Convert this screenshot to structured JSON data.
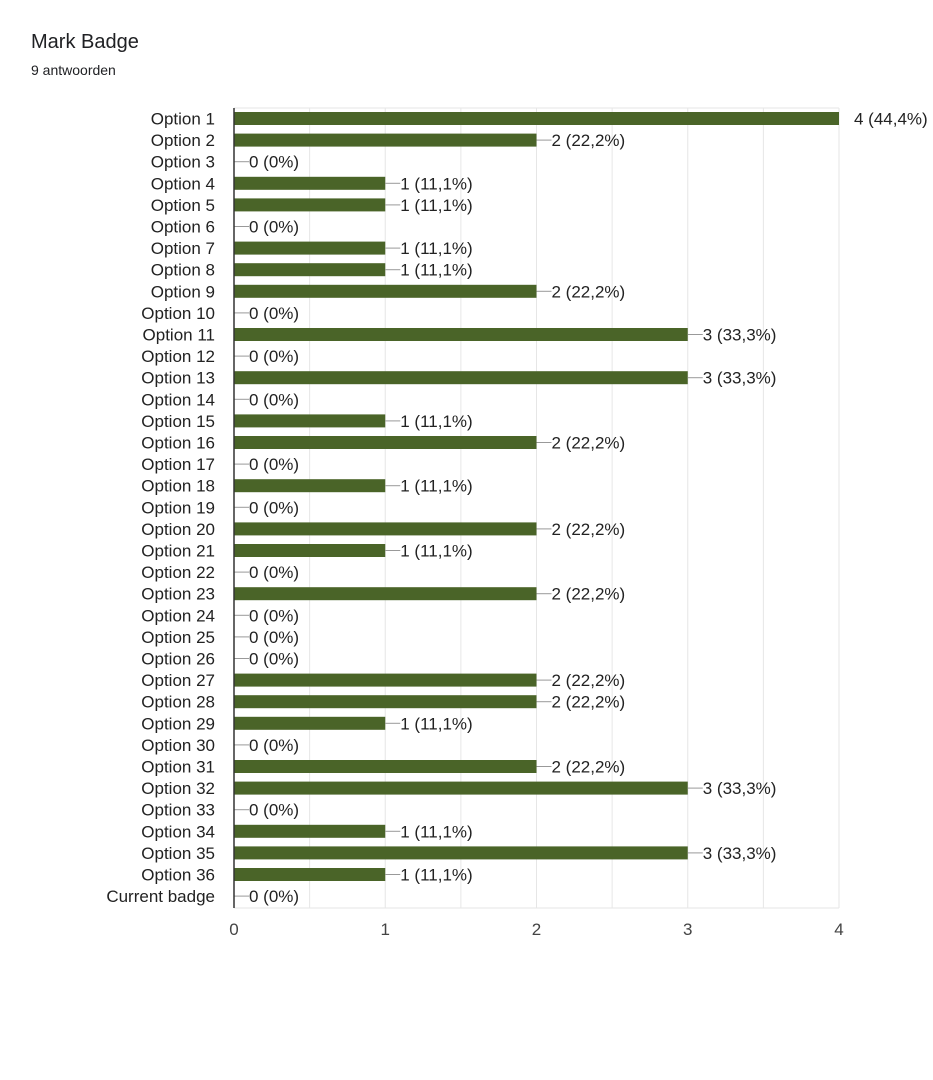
{
  "header": {
    "title": "Mark Badge",
    "subtitle": "9 antwoorden"
  },
  "colors": {
    "bar": "#4a6428",
    "grid": "#e6e6e6",
    "axis": "#333333",
    "leader": "#999999"
  },
  "chart_data": {
    "type": "bar",
    "orientation": "horizontal",
    "title": "",
    "xlabel": "",
    "ylabel": "",
    "xlim": [
      0,
      4
    ],
    "x_ticks": [
      "0",
      "1",
      "2",
      "3",
      "4"
    ],
    "grid": true,
    "legend": "none",
    "categories": [
      "Option 1",
      "Option 2",
      "Option 3",
      "Option 4",
      "Option 5",
      "Option 6",
      "Option 7",
      "Option 8",
      "Option 9",
      "Option 10",
      "Option 11",
      "Option 12",
      "Option 13",
      "Option 14",
      "Option 15",
      "Option 16",
      "Option 17",
      "Option 18",
      "Option 19",
      "Option 20",
      "Option 21",
      "Option 22",
      "Option 23",
      "Option 24",
      "Option 25",
      "Option 26",
      "Option 27",
      "Option 28",
      "Option 29",
      "Option 30",
      "Option 31",
      "Option 32",
      "Option 33",
      "Option 34",
      "Option 35",
      "Option 36",
      "Current badge"
    ],
    "values": [
      4,
      2,
      0,
      1,
      1,
      0,
      1,
      1,
      2,
      0,
      3,
      0,
      3,
      0,
      1,
      2,
      0,
      1,
      0,
      2,
      1,
      0,
      2,
      0,
      0,
      0,
      2,
      2,
      1,
      0,
      2,
      3,
      0,
      1,
      3,
      1,
      0
    ],
    "data_labels": [
      "4 (44,4%)",
      "2 (22,2%)",
      "0 (0%)",
      "1 (11,1%)",
      "1 (11,1%)",
      "0 (0%)",
      "1 (11,1%)",
      "1 (11,1%)",
      "2 (22,2%)",
      "0 (0%)",
      "3 (33,3%)",
      "0 (0%)",
      "3 (33,3%)",
      "0 (0%)",
      "1 (11,1%)",
      "2 (22,2%)",
      "0 (0%)",
      "1 (11,1%)",
      "0 (0%)",
      "2 (22,2%)",
      "1 (11,1%)",
      "0 (0%)",
      "2 (22,2%)",
      "0 (0%)",
      "0 (0%)",
      "0 (0%)",
      "2 (22,2%)",
      "2 (22,2%)",
      "1 (11,1%)",
      "0 (0%)",
      "2 (22,2%)",
      "3 (33,3%)",
      "0 (0%)",
      "1 (11,1%)",
      "3 (33,3%)",
      "1 (11,1%)",
      "0 (0%)"
    ]
  }
}
